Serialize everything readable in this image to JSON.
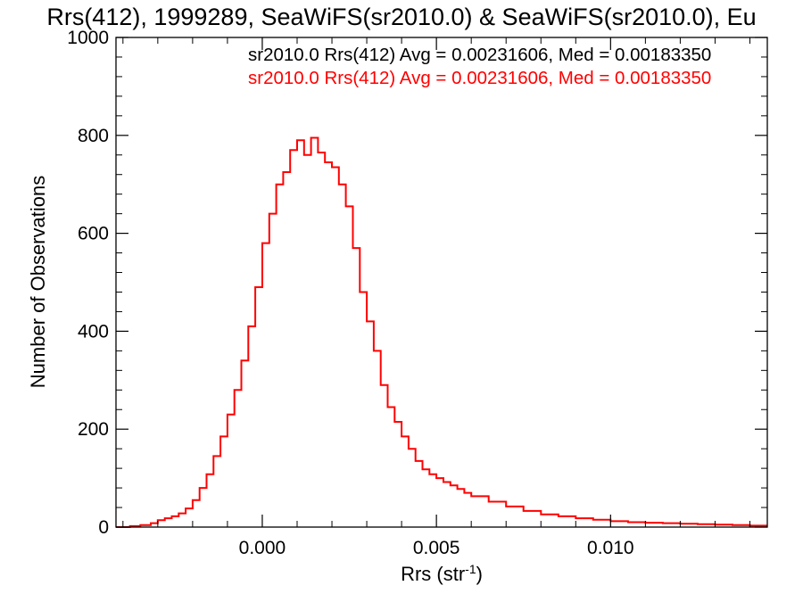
{
  "chart_data": {
    "type": "histogram-step",
    "title": "Rrs(412), 1999289, SeaWiFS(sr2010.0) & SeaWiFS(sr2010.0), Eu",
    "xlabel": {
      "main": "Rrs (str",
      "sup": "-1",
      "close": ")"
    },
    "ylabel": "Number of Observations",
    "xlim": [
      -0.0042,
      0.0145
    ],
    "ylim": [
      0,
      1000
    ],
    "xticks": [
      0.0,
      0.005,
      0.01
    ],
    "xtick_labels": [
      "0.000",
      "0.005",
      "0.010"
    ],
    "yticks": [
      0,
      200,
      400,
      600,
      800,
      1000
    ],
    "ytick_labels": [
      "0",
      "200",
      "400",
      "600",
      "800",
      "1000"
    ],
    "grid": false,
    "stats": [
      {
        "text": "sr2010.0 Rrs(412) Avg = 0.00231606, Med = 0.00183350",
        "color": "#000000"
      },
      {
        "text": "sr2010.0 Rrs(412) Avg = 0.00231606, Med = 0.00183350",
        "color": "#ff0000"
      }
    ],
    "series": [
      {
        "color": "#ff0000",
        "points": [
          [
            -0.0042,
            0
          ],
          [
            -0.0038,
            2
          ],
          [
            -0.0035,
            4
          ],
          [
            -0.0032,
            8
          ],
          [
            -0.003,
            14
          ],
          [
            -0.0028,
            18
          ],
          [
            -0.0026,
            22
          ],
          [
            -0.0024,
            28
          ],
          [
            -0.0022,
            38
          ],
          [
            -0.002,
            55
          ],
          [
            -0.0018,
            80
          ],
          [
            -0.0016,
            108
          ],
          [
            -0.0014,
            145
          ],
          [
            -0.0012,
            185
          ],
          [
            -0.001,
            230
          ],
          [
            -0.0008,
            280
          ],
          [
            -0.0006,
            340
          ],
          [
            -0.0004,
            410
          ],
          [
            -0.0002,
            490
          ],
          [
            0.0,
            580
          ],
          [
            0.0002,
            640
          ],
          [
            0.0004,
            700
          ],
          [
            0.0006,
            725
          ],
          [
            0.0008,
            770
          ],
          [
            0.001,
            790
          ],
          [
            0.0012,
            760
          ],
          [
            0.0014,
            795
          ],
          [
            0.0016,
            765
          ],
          [
            0.0018,
            745
          ],
          [
            0.002,
            735
          ],
          [
            0.0022,
            700
          ],
          [
            0.0024,
            655
          ],
          [
            0.0026,
            570
          ],
          [
            0.0028,
            480
          ],
          [
            0.003,
            420
          ],
          [
            0.0032,
            360
          ],
          [
            0.0034,
            290
          ],
          [
            0.0036,
            245
          ],
          [
            0.0038,
            215
          ],
          [
            0.004,
            185
          ],
          [
            0.0042,
            160
          ],
          [
            0.0044,
            135
          ],
          [
            0.0046,
            118
          ],
          [
            0.0048,
            108
          ],
          [
            0.005,
            100
          ],
          [
            0.0052,
            92
          ],
          [
            0.0054,
            85
          ],
          [
            0.0056,
            78
          ],
          [
            0.0058,
            70
          ],
          [
            0.006,
            63
          ],
          [
            0.0065,
            52
          ],
          [
            0.007,
            42
          ],
          [
            0.0075,
            33
          ],
          [
            0.008,
            26
          ],
          [
            0.0085,
            22
          ],
          [
            0.009,
            18
          ],
          [
            0.0095,
            15
          ],
          [
            0.01,
            12
          ],
          [
            0.0105,
            10
          ],
          [
            0.011,
            9
          ],
          [
            0.0115,
            8
          ],
          [
            0.012,
            7
          ],
          [
            0.0125,
            6
          ],
          [
            0.013,
            5
          ],
          [
            0.0135,
            4
          ],
          [
            0.014,
            3
          ],
          [
            0.0145,
            3
          ]
        ]
      }
    ]
  }
}
